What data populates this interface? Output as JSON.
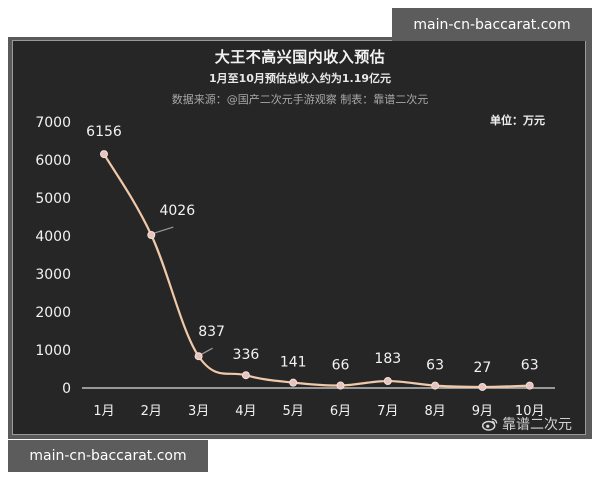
{
  "watermarks": {
    "top": "main-cn-baccarat.com",
    "bottom": "main-cn-baccarat.com"
  },
  "header": {
    "title": "大王不高兴国内收入预估",
    "subtitle": "1月至10月预估总收入约为1.19亿元",
    "source": "数据来源：@国产二次元手游观察 制表：靠谱二次元",
    "unit": "单位：万元"
  },
  "footer": {
    "weibo_handle": "靠谱二次元"
  },
  "colors": {
    "background": "#262626",
    "line": "#f0c9a8",
    "marker": "#e6c3c0",
    "text": "#f2f2f2",
    "axis": "#bdbdbd"
  },
  "chart_data": {
    "type": "line",
    "title": "大王不高兴国内收入预估",
    "subtitle": "1月至10月预估总收入约为1.19亿元",
    "xlabel": "",
    "ylabel": "单位：万元",
    "categories": [
      "1月",
      "2月",
      "3月",
      "4月",
      "5月",
      "6月",
      "7月",
      "8月",
      "9月",
      "10月"
    ],
    "values": [
      6156,
      4026,
      837,
      336,
      141,
      66,
      183,
      63,
      27,
      63
    ],
    "ylim": [
      0,
      7000
    ],
    "yticks": [
      0,
      1000,
      2000,
      3000,
      4000,
      5000,
      6000,
      7000
    ],
    "grid": false,
    "legend": "none",
    "smooth": true,
    "data_labels": true
  }
}
